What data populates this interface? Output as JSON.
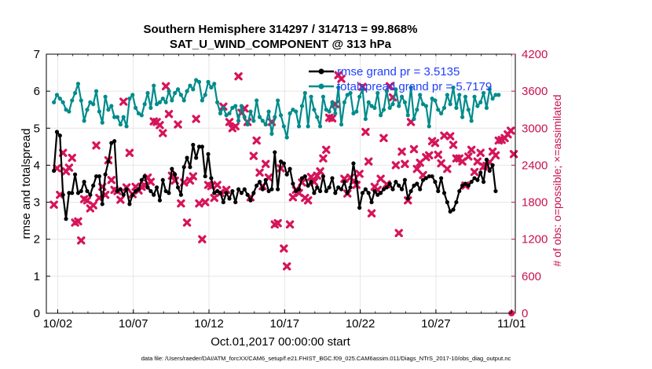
{
  "chart_data": {
    "type": "line",
    "title_line1": "Southern Hemisphere 314297 / 314713 = 99.868%",
    "title_line2": "SAT_U_WIND_COMPONENT @ 313 hPa",
    "xlabel": "Oct.01,2017 00:00:00 start",
    "ylabel_left": "rmse and totalspread",
    "ylabel_right": "# of obs: o=possible; ×=assimilated",
    "footnote": "data file: /Users/raeder/DAI/ATM_forcXX/CAM6_setup/f.e21.FHIST_BGC.f09_025.CAM6assim.011/Diags_NTrS_2017-10/obs_diag_output.nc",
    "x_ticks": [
      "10/02",
      "10/07",
      "10/12",
      "10/17",
      "10/22",
      "10/27",
      "11/01"
    ],
    "x_tick_days": [
      1,
      6,
      11,
      16,
      21,
      26,
      31
    ],
    "xlim_days": [
      0.25,
      31.25
    ],
    "y_left_ticks": [
      "0",
      "1",
      "2",
      "3",
      "4",
      "5",
      "6",
      "7"
    ],
    "ylim_left": [
      0,
      7
    ],
    "y_right_ticks": [
      "0",
      "600",
      "1200",
      "1800",
      "2400",
      "3000",
      "3600",
      "4200"
    ],
    "ylim_right": [
      0,
      4200
    ],
    "grid": true,
    "legend_position": "top-right",
    "colors": {
      "rmse": "#000000",
      "spread": "#008b8b",
      "obs": "#d6145a",
      "legend_text": "#1f3fff",
      "right_axis": "#c8104f"
    },
    "series": [
      {
        "name": "rmse grand pr = 3.5135",
        "values": [
          3.85,
          4.9,
          4.8,
          3.2,
          2.55,
          3.25,
          3.25,
          3.75,
          3.25,
          3.3,
          3.55,
          3.3,
          3.2,
          3.45,
          3.7,
          3.7,
          2.95,
          3.75,
          4.1,
          4.6,
          4.65,
          3.3,
          3.35,
          3.2,
          3.35,
          2.95,
          3.2,
          3.3,
          3.35,
          3.6,
          3.7,
          3.4,
          3.3,
          3.2,
          3.4,
          3.05,
          3.6,
          3.3,
          3.25,
          3.9,
          3.75,
          3.4,
          3.2,
          3.95,
          4.2,
          3.95,
          4.55,
          4.2,
          4.5,
          4.5,
          3.7,
          4.3,
          3.65,
          3.25,
          3.3,
          3.25,
          3.0,
          3.25,
          3.1,
          3.3,
          3.0,
          3.35,
          3.25,
          3.35,
          3.2,
          3.05,
          3.25,
          3.45,
          3.55,
          3.35,
          3.6,
          3.3,
          3.35,
          4.35,
          3.35,
          4.1,
          4.05,
          3.75,
          3.9,
          3.5,
          3.3,
          3.35,
          3.65,
          3.7,
          3.45,
          3.55,
          3.25,
          3.4,
          3.3,
          3.7,
          3.3,
          3.4,
          3.65,
          3.25,
          3.4,
          3.35,
          3.55,
          3.25,
          3.4,
          4.05,
          3.55,
          2.85,
          3.25,
          3.35,
          3.25,
          3.0,
          3.3,
          3.2,
          3.25,
          3.35,
          3.4,
          3.5,
          3.35,
          3.55,
          3.45,
          3.35,
          3.6,
          3.1,
          3.3,
          3.45,
          3.5,
          3.35,
          3.6,
          3.65,
          3.7,
          3.7,
          3.55,
          3.3,
          3.65,
          3.25,
          3.0,
          2.75,
          2.8,
          3.0,
          3.3,
          3.45,
          3.5,
          3.45,
          3.55,
          3.65,
          3.6,
          3.8,
          3.55,
          4.15,
          3.85,
          4.0,
          3.3
        ]
      },
      {
        "name": "totalspread grand pr = 5.7179",
        "values": [
          5.7,
          5.9,
          5.8,
          5.7,
          5.5,
          5.45,
          5.75,
          5.95,
          6.2,
          5.75,
          5.2,
          5.5,
          5.7,
          5.65,
          6.0,
          5.45,
          5.15,
          5.85,
          5.5,
          5.6,
          5.3,
          5.3,
          5.1,
          5.3,
          5.05,
          5.8,
          5.9,
          5.55,
          5.4,
          5.35,
          5.65,
          5.95,
          5.55,
          6.15,
          5.65,
          5.7,
          5.8,
          5.7,
          6.0,
          5.75,
          5.95,
          6.05,
          5.9,
          5.75,
          6.0,
          6.15,
          6.05,
          6.3,
          6.25,
          5.75,
          5.9,
          6.25,
          6.1,
          6.2,
          5.7,
          5.4,
          5.55,
          5.35,
          5.4,
          5.55,
          5.6,
          5.2,
          5.6,
          5.3,
          5.1,
          5.45,
          5.2,
          5.75,
          5.3,
          5.2,
          5.1,
          5.45,
          4.85,
          5.3,
          5.75,
          5.35,
          5.05,
          4.75,
          5.4,
          5.5,
          5.45,
          5.05,
          5.6,
          5.95,
          5.05,
          5.85,
          5.5,
          5.3,
          5.05,
          5.85,
          5.5,
          5.45,
          5.7,
          5.4,
          6.1,
          5.1,
          5.7,
          5.9,
          5.95,
          5.4,
          5.45,
          5.85,
          6.05,
          5.25,
          5.7,
          5.6,
          5.55,
          5.95,
          5.35,
          5.5,
          6.0,
          5.55,
          5.65,
          6.05,
          5.6,
          5.85,
          5.7,
          5.35,
          6.1,
          5.25,
          5.5,
          5.9,
          5.65,
          5.6,
          5.05,
          5.8,
          5.75,
          5.5,
          5.4,
          5.55,
          5.9,
          5.65,
          6.1,
          5.55,
          5.9,
          5.3,
          5.85,
          5.5,
          5.2,
          5.85,
          5.6,
          5.7,
          5.95,
          5.55,
          6.05,
          5.8,
          5.9,
          5.9
        ]
      },
      {
        "name": "obs assimilated",
        "values": [
          1760,
          2350,
          1920,
          2600,
          2300,
          2360,
          2520,
          1470,
          1490,
          1180,
          1850,
          1830,
          1700,
          1750,
          2720,
          1870,
          2050,
          1920,
          2480,
          2160,
          2000,
          1980,
          1840,
          3430,
          2040,
          2600,
          1930,
          2050,
          1990,
          2050,
          2070,
          2200,
          2130,
          3110,
          3100,
          3050,
          2920,
          3680,
          3230,
          2230,
          2150,
          3060,
          1780,
          2120,
          1470,
          2150,
          2220,
          3150,
          1780,
          1200,
          1800,
          2080,
          2060,
          1870,
          2080,
          1950,
          3350,
          2000,
          3100,
          3000,
          3030,
          3840,
          3250,
          3320,
          3100,
          1880,
          2550,
          2800,
          2280,
          2060,
          2420,
          2200,
          3100,
          1440,
          1460,
          2350,
          1050,
          760,
          1440,
          1880,
          2000,
          1950,
          2120,
          1870,
          1830,
          2210,
          2130,
          2230,
          2300,
          2510,
          2650,
          3170,
          3160,
          3390,
          3860,
          3800,
          2180,
          1940,
          2200,
          2140,
          2080,
          2260,
          3670,
          2940,
          2460,
          1620,
          2050,
          2000,
          2180,
          2840,
          2090,
          3680,
          3500,
          2400,
          1300,
          2620,
          2420,
          1830,
          3100,
          2660,
          2340,
          2440,
          2240,
          2530,
          2560,
          2790,
          2760,
          2570,
          2430,
          2880,
          2340,
          2870,
          2730,
          2510,
          2510,
          2460,
          2070,
          2540,
          2650,
          2290,
          2460,
          2600,
          2380,
          2390,
          2450,
          2620,
          2560,
          2800,
          2810,
          2840,
          2900,
          2960,
          2580
        ]
      }
    ],
    "obs_possible_markers": [
      [
        31.0,
        0
      ]
    ],
    "legend": [
      "rmse grand pr = 3.5135",
      "totalspread grand pr = 5.7179"
    ]
  }
}
